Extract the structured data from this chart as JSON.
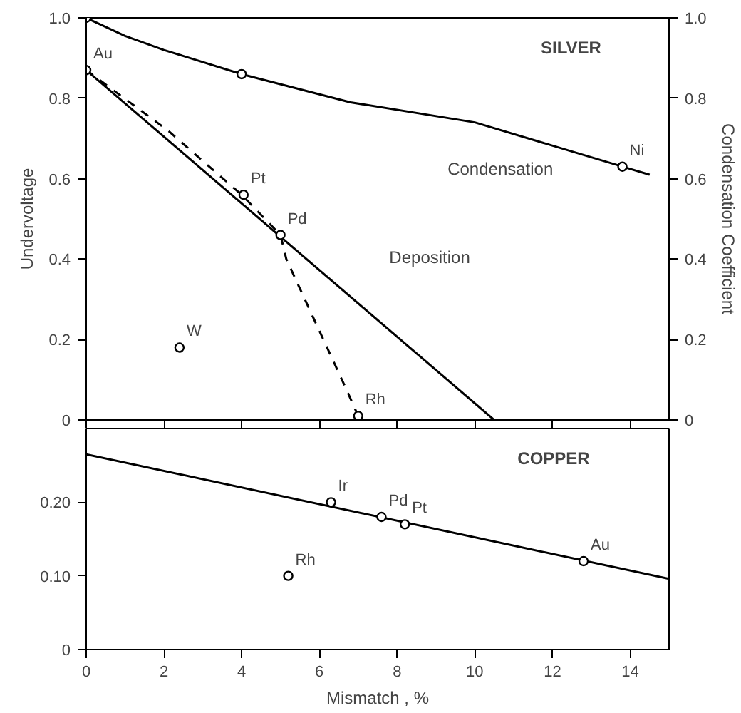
{
  "chart_data": [
    {
      "type": "line",
      "ylabel": "Undervoltage",
      "y2label": "Condensation Coefficient",
      "xlim": [
        0,
        15
      ],
      "xticks": [
        {
          "value": 0,
          "label": null
        },
        {
          "value": 2,
          "label": null
        },
        {
          "value": 4,
          "label": null
        },
        {
          "value": 6,
          "label": null
        },
        {
          "value": 8,
          "label": null
        },
        {
          "value": 10,
          "label": null
        },
        {
          "value": 12,
          "label": null
        },
        {
          "value": 14,
          "label": null
        }
      ],
      "ylim": [
        0,
        1.0
      ],
      "yticks": [
        0,
        {
          "value": 0.2,
          "label": "0.2"
        },
        {
          "value": 0.4,
          "label": "0.4"
        },
        {
          "value": 0.6,
          "label": "0.6"
        },
        {
          "value": 0.8,
          "label": "0.8"
        },
        {
          "value": 1.0,
          "label": "1.0"
        }
      ],
      "y2lim": [
        0,
        1.0
      ],
      "y2ticks": [
        0,
        {
          "value": 0.2,
          "label": "0.2"
        },
        {
          "value": 0.4,
          "label": "0.4"
        },
        {
          "value": 0.6,
          "label": "0.6"
        },
        {
          "value": 0.8,
          "label": "0.8"
        },
        {
          "value": 1.0,
          "label": "1.0"
        }
      ],
      "tick_labels": "y",
      "grid": false,
      "series": [
        {
          "color": "#000000",
          "line_style": "solid",
          "marker": "none",
          "x": [
            0,
            1,
            2,
            4,
            6.8,
            10,
            13.8,
            14.5
          ],
          "values": [
            1.0,
            0.955,
            0.92,
            0.86,
            0.79,
            0.74,
            0.63,
            0.61
          ]
        },
        {
          "color": "#000000",
          "line_style": "solid",
          "marker": "none",
          "x": [
            0,
            10.5
          ],
          "values": [
            0.87,
            0
          ]
        },
        {
          "color": "#000000",
          "line_style": "dashed",
          "marker": "none",
          "x": [
            0,
            2.1,
            4.0,
            5.0,
            5.15,
            6.2,
            6.7,
            7.0
          ],
          "values": [
            0.87,
            0.72,
            0.56,
            0.46,
            0.4,
            0.18,
            0.075,
            0.01
          ]
        },
        {
          "type": "scatter",
          "color": "#000000",
          "marker": "circle",
          "x": [
            0,
            4.0,
            13.8,
            0,
            4.05,
            5.0,
            7.0,
            2.4
          ],
          "values": [
            1.0,
            0.86,
            0.63,
            0.87,
            0.56,
            0.46,
            0.01,
            0.18
          ]
        }
      ],
      "annotations": [
        "SILVER",
        "Condensation",
        "Deposition",
        {
          "text": "Au",
          "x": 0,
          "y": 0.87
        },
        {
          "text": "Pt",
          "x": 4.05,
          "y": 0.56
        },
        {
          "text": "Pd",
          "x": 5.0,
          "y": 0.46
        },
        {
          "text": "Rh",
          "x": 7.0,
          "y": 0.01
        },
        {
          "text": "W",
          "x": 2.4,
          "y": 0.18
        },
        {
          "text": "Ni",
          "x": 13.8,
          "y": 0.63
        }
      ]
    },
    {
      "type": "line",
      "xlabel": "Mismatch , %",
      "xlim": [
        0,
        15
      ],
      "xticks": [
        0,
        2,
        4,
        6,
        8,
        10,
        12,
        14
      ],
      "ylim": [
        0,
        0.3
      ],
      "yticks": [
        0,
        {
          "value": 0.1,
          "label": "0.10"
        },
        {
          "value": 0.2,
          "label": "0.20"
        }
      ],
      "grid": false,
      "series": [
        {
          "color": "#000000",
          "line_style": "solid",
          "marker": "none",
          "x": [
            0,
            15
          ],
          "values": [
            0.265,
            0.096
          ]
        },
        {
          "type": "scatter",
          "color": "#000000",
          "marker": "circle",
          "x": [
            6.3,
            7.6,
            8.2,
            12.8,
            5.2
          ],
          "values": [
            0.2,
            0.18,
            0.17,
            0.12,
            0.1
          ]
        }
      ],
      "annotations": [
        "COPPER",
        {
          "text": "Ir",
          "x": 6.3,
          "y": 0.2
        },
        {
          "text": "Pd",
          "x": 7.6,
          "y": 0.18
        },
        {
          "text": "Pt",
          "x": 8.2,
          "y": 0.17
        },
        {
          "text": "Au",
          "x": 12.8,
          "y": 0.12
        },
        {
          "text": "Rh",
          "x": 5.2,
          "y": 0.1
        }
      ]
    }
  ]
}
